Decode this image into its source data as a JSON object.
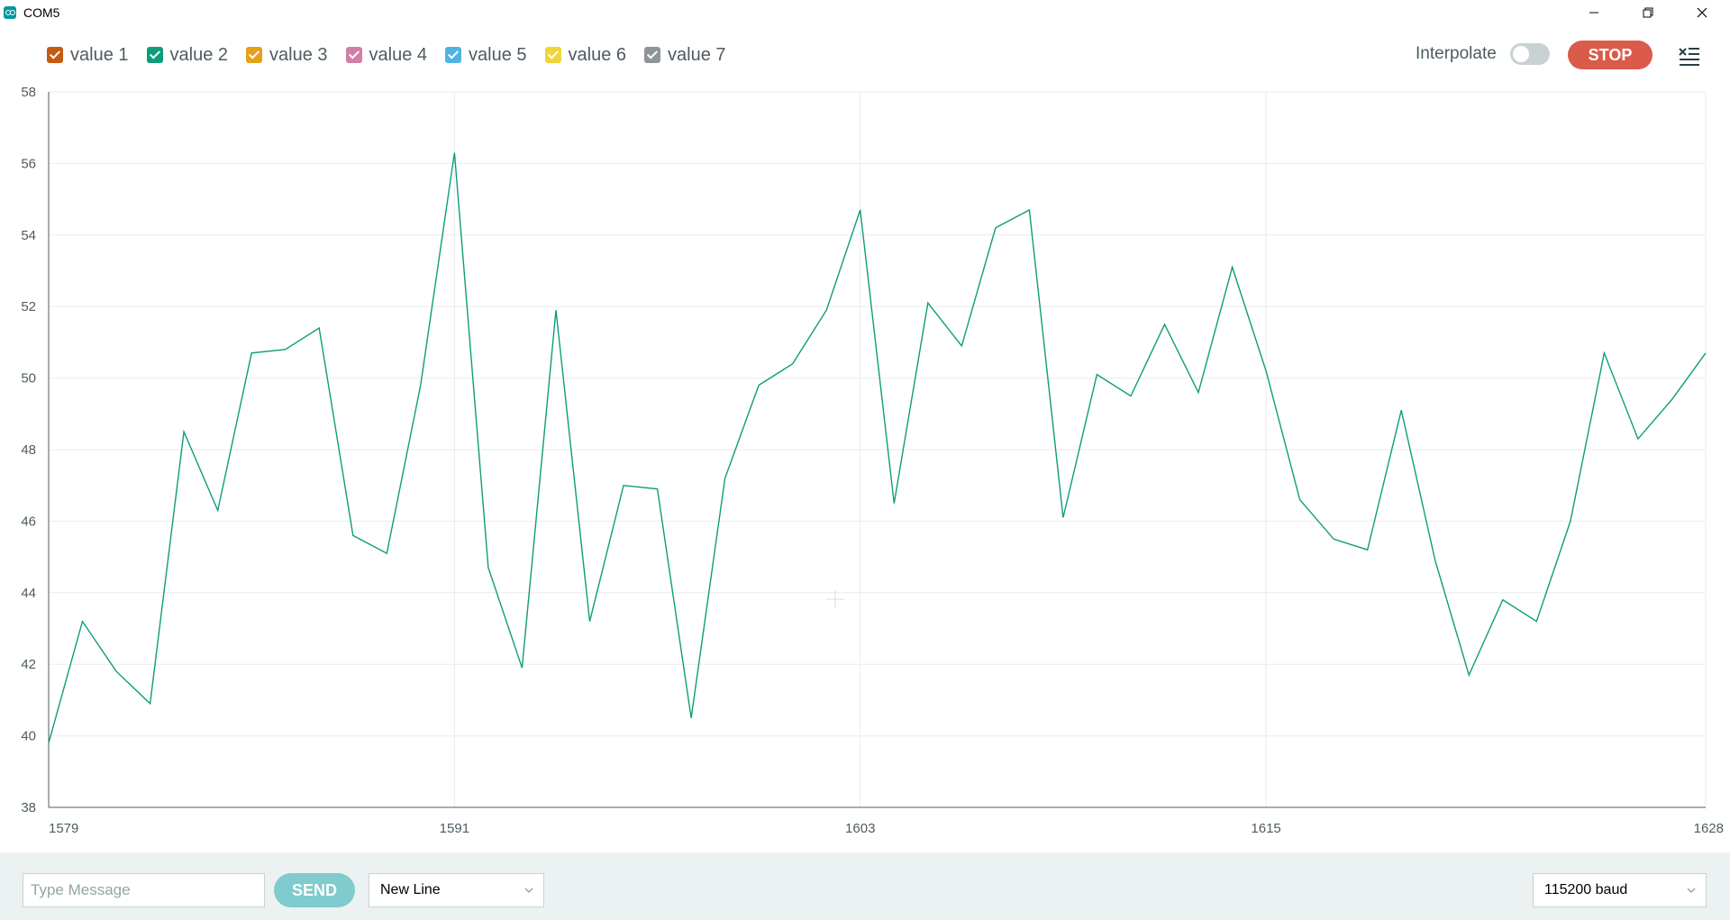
{
  "window": {
    "title": "COM5"
  },
  "legend": [
    {
      "label": "value 1",
      "color": "#c55a11",
      "checked": true
    },
    {
      "label": "value 2",
      "color": "#0d9d7a",
      "checked": true
    },
    {
      "label": "value 3",
      "color": "#e6a117",
      "checked": true
    },
    {
      "label": "value 4",
      "color": "#d27ea8",
      "checked": true
    },
    {
      "label": "value 5",
      "color": "#4fb3e3",
      "checked": true
    },
    {
      "label": "value 6",
      "color": "#eed53a",
      "checked": true
    },
    {
      "label": "value 7",
      "color": "#8e9599",
      "checked": true
    }
  ],
  "toolbar": {
    "interpolate_label": "Interpolate",
    "interpolate_on": false,
    "stop_label": "STOP"
  },
  "chart_data": {
    "type": "line",
    "x": [
      1579,
      1580,
      1581,
      1582,
      1583,
      1584,
      1585,
      1586,
      1587,
      1588,
      1589,
      1590,
      1591,
      1592,
      1593,
      1594,
      1595,
      1596,
      1597,
      1598,
      1599,
      1600,
      1601,
      1602,
      1603,
      1604,
      1605,
      1606,
      1607,
      1608,
      1609,
      1610,
      1611,
      1612,
      1613,
      1614,
      1615,
      1616,
      1617,
      1618,
      1619,
      1620,
      1621,
      1622,
      1623,
      1624,
      1625,
      1626,
      1627,
      1628
    ],
    "series": [
      {
        "color": "#0d9d7a",
        "values": [
          39.8,
          43.2,
          41.8,
          40.9,
          48.5,
          46.3,
          50.7,
          50.8,
          51.4,
          45.6,
          45.1,
          49.8,
          56.3,
          44.7,
          41.9,
          51.9,
          43.2,
          47.0,
          46.9,
          40.5,
          47.2,
          49.8,
          50.4,
          51.9,
          54.7,
          46.5,
          52.1,
          50.9,
          54.2,
          54.7,
          46.1,
          50.1,
          49.5,
          51.5,
          49.6,
          53.1,
          50.2,
          46.6,
          45.5,
          45.2,
          49.1,
          44.9,
          41.7,
          43.8,
          43.2,
          46.0,
          50.7,
          48.3,
          49.4,
          50.7
        ]
      }
    ],
    "xlim": [
      1579,
      1628
    ],
    "ylim": [
      38,
      58
    ],
    "xticks": [
      1579,
      1591,
      1603,
      1615,
      1628
    ],
    "yticks": [
      38,
      40,
      42,
      44,
      46,
      48,
      50,
      52,
      54,
      56,
      58
    ],
    "grid": true
  },
  "bottom": {
    "message_placeholder": "Type Message",
    "message_value": "",
    "send_label": "SEND",
    "line_ending": "New Line",
    "baud": "115200 baud"
  }
}
